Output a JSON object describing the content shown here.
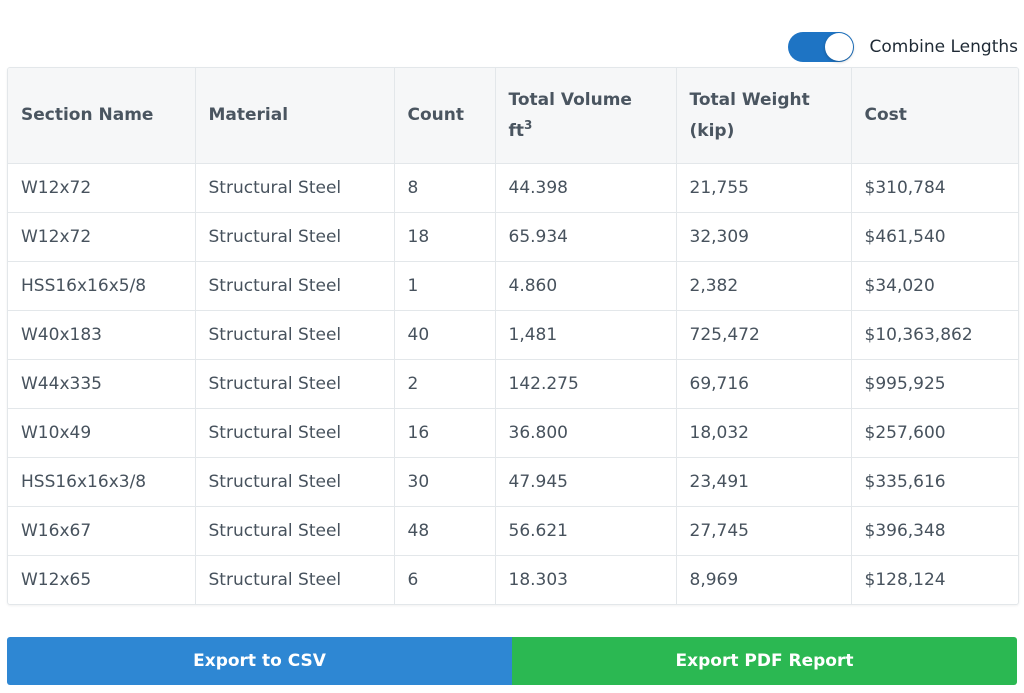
{
  "toggle": {
    "label": "Combine Lengths",
    "on": true
  },
  "table": {
    "columns": [
      {
        "label": "Section Name"
      },
      {
        "label": "Material"
      },
      {
        "label": "Count"
      },
      {
        "label": "Total Volume",
        "unit": "ft",
        "unit_sup": "3"
      },
      {
        "label": "Total Weight",
        "unit": "(kip)"
      },
      {
        "label": "Cost"
      }
    ],
    "rows": [
      [
        "W12x72",
        "Structural Steel",
        "8",
        "44.398",
        "21,755",
        "$310,784"
      ],
      [
        "W12x72",
        "Structural Steel",
        "18",
        "65.934",
        "32,309",
        "$461,540"
      ],
      [
        "HSS16x16x5/8",
        "Structural Steel",
        "1",
        "4.860",
        "2,382",
        "$34,020"
      ],
      [
        "W40x183",
        "Structural Steel",
        "40",
        "1,481",
        "725,472",
        "$10,363,862"
      ],
      [
        "W44x335",
        "Structural Steel",
        "2",
        "142.275",
        "69,716",
        "$995,925"
      ],
      [
        "W10x49",
        "Structural Steel",
        "16",
        "36.800",
        "18,032",
        "$257,600"
      ],
      [
        "HSS16x16x3/8",
        "Structural Steel",
        "30",
        "47.945",
        "23,491",
        "$335,616"
      ],
      [
        "W16x67",
        "Structural Steel",
        "48",
        "56.621",
        "27,745",
        "$396,348"
      ],
      [
        "W12x65",
        "Structural Steel",
        "6",
        "18.303",
        "8,969",
        "$128,124"
      ]
    ]
  },
  "buttons": {
    "csv_label": "Export to CSV",
    "pdf_label": "Export PDF Report"
  },
  "colors": {
    "toggle_on": "#1e74c4",
    "csv_button": "#2e87d3",
    "pdf_button": "#2bb852"
  }
}
